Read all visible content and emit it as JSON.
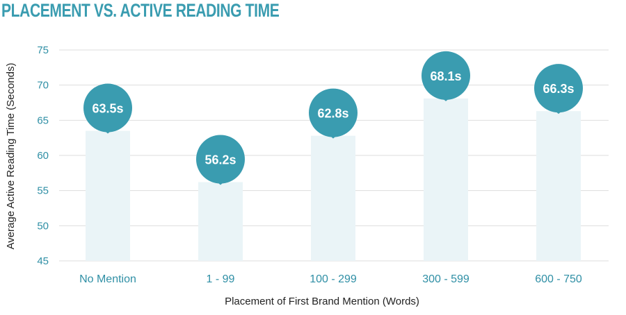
{
  "chart_data": {
    "type": "bar",
    "title": "PLACEMENT VS. ACTIVE READING TIME",
    "xlabel": "Placement of First Brand Mention (Words)",
    "ylabel": "Average Active Reading Time (Seconds)",
    "categories": [
      "No Mention",
      "1 - 99",
      "100 - 299",
      "300 - 599",
      "600 - 750"
    ],
    "values": [
      63.5,
      56.2,
      62.8,
      68.1,
      66.3
    ],
    "value_labels": [
      "63.5s",
      "56.2s",
      "62.8s",
      "68.1s",
      "66.3s"
    ],
    "ylim": [
      45,
      75
    ],
    "yticks": [
      45,
      50,
      55,
      60,
      65,
      70,
      75
    ],
    "grid": true,
    "colors": {
      "bar": "#eaf4f7",
      "marker": "#3a9cb0",
      "grid": "#dddddd",
      "title": "#3a9cb0",
      "ticks": "#2f8fa5"
    }
  }
}
